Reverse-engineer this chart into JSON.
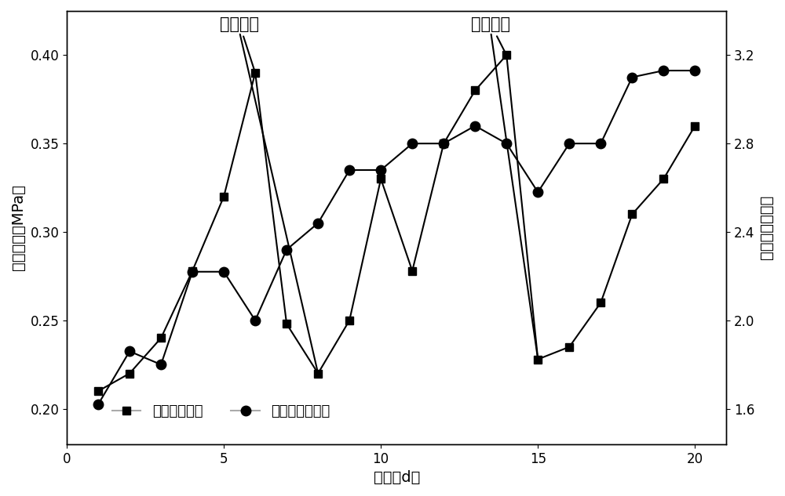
{
  "uf_x": [
    1,
    2,
    3,
    4,
    5,
    6,
    7,
    8,
    9,
    10,
    11,
    12,
    13,
    14,
    15,
    16,
    17,
    18,
    19,
    20
  ],
  "uf_y": [
    0.21,
    0.22,
    0.24,
    0.278,
    0.32,
    0.39,
    0.248,
    0.22,
    0.25,
    0.33,
    0.278,
    0.35,
    0.38,
    0.4,
    0.228,
    0.235,
    0.26,
    0.31,
    0.33,
    0.36
  ],
  "ro_x": [
    1,
    2,
    3,
    4,
    5,
    6,
    7,
    8,
    9,
    10,
    11,
    12,
    13,
    14,
    15,
    16,
    17,
    18,
    19,
    20
  ],
  "ro_y": [
    1.62,
    1.86,
    1.8,
    2.22,
    2.22,
    2.0,
    2.32,
    2.44,
    2.68,
    2.68,
    2.8,
    2.8,
    2.88,
    2.8,
    2.58,
    2.8,
    2.8,
    3.1,
    3.13,
    3.13
  ],
  "xlabel": "天数（d）",
  "ylabel_left": "进水压力（MPa）",
  "ylabel_right": "反渗透进水压力",
  "legend_uf": "超滤进水压力",
  "legend_ro": "反渗透进水压力",
  "annot1_text": "进行清洗",
  "annot2_text": "进行清洗",
  "ylim_left": [
    0.18,
    0.425
  ],
  "ylim_right": [
    1.44,
    3.4
  ],
  "xlim": [
    0,
    21
  ],
  "yticks_left": [
    0.2,
    0.25,
    0.3,
    0.35,
    0.4
  ],
  "yticks_right": [
    1.6,
    2.0,
    2.4,
    2.8,
    3.2
  ],
  "xticks": [
    0,
    5,
    10,
    15,
    20
  ],
  "line_color": "#000000",
  "legend_line_color": "#aaaaaa",
  "marker_uf": "s",
  "marker_ro": "o",
  "marker_size_uf": 7,
  "marker_size_ro": 9,
  "linewidth": 1.5,
  "fontsize_label": 14,
  "fontsize_tick": 12,
  "fontsize_legend": 13,
  "fontsize_annotation": 15
}
